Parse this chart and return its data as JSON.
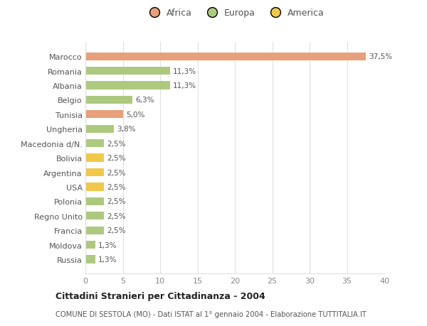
{
  "categories": [
    "Russia",
    "Moldova",
    "Francia",
    "Regno Unito",
    "Polonia",
    "USA",
    "Argentina",
    "Bolivia",
    "Macedonia d/N.",
    "Ungheria",
    "Tunisia",
    "Belgio",
    "Albania",
    "Romania",
    "Marocco"
  ],
  "values": [
    1.3,
    1.3,
    2.5,
    2.5,
    2.5,
    2.5,
    2.5,
    2.5,
    2.5,
    3.8,
    5.0,
    6.3,
    11.3,
    11.3,
    37.5
  ],
  "colors": [
    "#adc97e",
    "#adc97e",
    "#adc97e",
    "#adc97e",
    "#adc97e",
    "#f0c84a",
    "#f0c84a",
    "#f0c84a",
    "#adc97e",
    "#adc97e",
    "#e8a07a",
    "#adc97e",
    "#adc97e",
    "#adc97e",
    "#e8a07a"
  ],
  "labels": [
    "1,3%",
    "1,3%",
    "2,5%",
    "2,5%",
    "2,5%",
    "2,5%",
    "2,5%",
    "2,5%",
    "2,5%",
    "3,8%",
    "5,0%",
    "6,3%",
    "11,3%",
    "11,3%",
    "37,5%"
  ],
  "legend": [
    {
      "label": "Africa",
      "color": "#e8a07a"
    },
    {
      "label": "Europa",
      "color": "#adc97e"
    },
    {
      "label": "America",
      "color": "#f0c84a"
    }
  ],
  "xlim": [
    0,
    40
  ],
  "xticks": [
    0,
    5,
    10,
    15,
    20,
    25,
    30,
    35,
    40
  ],
  "title": "Cittadini Stranieri per Cittadinanza - 2004",
  "subtitle": "COMUNE DI SESTOLA (MO) - Dati ISTAT al 1° gennaio 2004 - Elaborazione TUTTITALIA.IT",
  "background_color": "#ffffff",
  "grid_color": "#e0e0e0"
}
